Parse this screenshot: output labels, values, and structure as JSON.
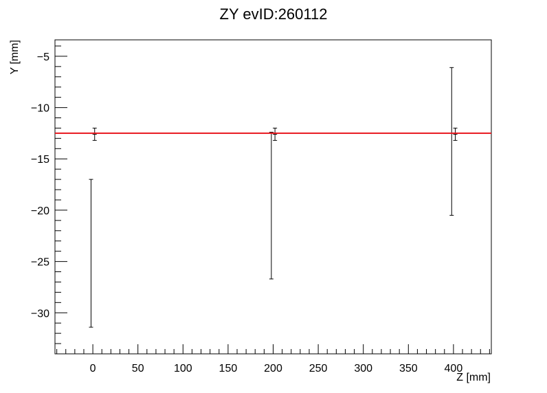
{
  "chart_data": {
    "type": "scatter",
    "title": "ZY evID:260112",
    "xlabel": "Z [mm]",
    "ylabel": "Y [mm]",
    "xlim": [
      -42,
      442
    ],
    "ylim": [
      -34,
      -3.4
    ],
    "xticks": [
      0,
      50,
      100,
      150,
      200,
      250,
      300,
      350,
      400
    ],
    "xtick_labels": [
      "0",
      "50",
      "100",
      "150",
      "200",
      "250",
      "300",
      "350",
      "400"
    ],
    "yticks": [
      -30,
      -25,
      -20,
      -15,
      -10,
      -5
    ],
    "ytick_labels": [
      "−30",
      "−25",
      "−20",
      "−15",
      "−10",
      "−5"
    ],
    "grid": false,
    "series": [
      {
        "points": [
          {
            "x": 2,
            "y": -12.6,
            "ylow": -12.0,
            "yhigh": -13.2
          },
          {
            "x": 202,
            "y": -12.6,
            "ylow": -12.0,
            "yhigh": -13.2
          },
          {
            "x": 402,
            "y": -12.6,
            "ylow": -12.0,
            "yhigh": -13.2
          }
        ]
      },
      {
        "points": [
          {
            "x": -2,
            "ylow": -17.0,
            "yhigh": -31.4
          },
          {
            "x": 198,
            "ylow": -12.4,
            "yhigh": -26.7
          },
          {
            "x": 398,
            "ylow": -6.1,
            "yhigh": -20.5
          }
        ]
      }
    ],
    "fit_line": {
      "y": -12.5,
      "color": "#e8141c"
    }
  }
}
